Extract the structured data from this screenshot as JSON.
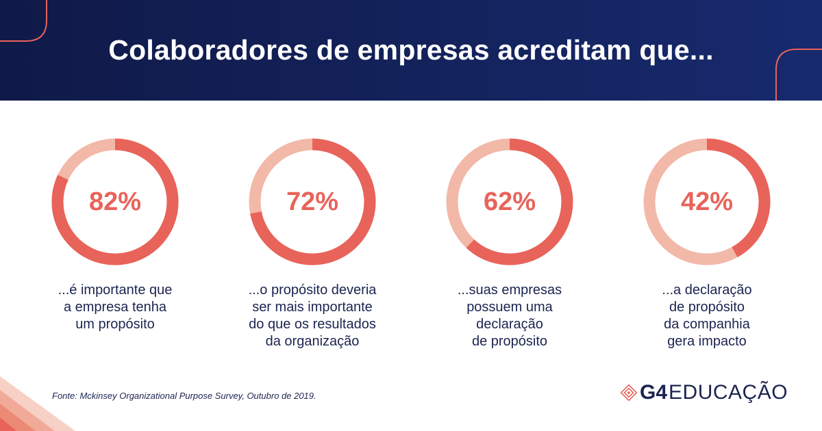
{
  "header": {
    "title": "Colaboradores de empresas acreditam que..."
  },
  "chart_data": {
    "type": "pie",
    "style": "donut",
    "items": [
      {
        "value": 82,
        "label": "82%",
        "caption": [
          "...é importante que",
          "a empresa tenha",
          "um propósito"
        ]
      },
      {
        "value": 72,
        "label": "72%",
        "caption": [
          "...o propósito deveria",
          "ser mais importante",
          "do que os resultados",
          "da organização"
        ]
      },
      {
        "value": 62,
        "label": "62%",
        "caption": [
          "...suas empresas",
          "possuem uma",
          "declaração",
          "de propósito"
        ]
      },
      {
        "value": 42,
        "label": "42%",
        "caption": [
          "...a declaração",
          "de propósito",
          "da companhia",
          "gera impacto"
        ]
      }
    ],
    "colors": {
      "filled": "#e8635a",
      "remaining": "#f2b8a8",
      "text": "#e8635a"
    }
  },
  "footer": {
    "source": "Fonte: Mckinsey Organizational Purpose Survey, Outubro de 2019.",
    "logo": {
      "mark": "G4",
      "word": "EDUCAÇÃO"
    }
  },
  "colors": {
    "header_bg": "#14235e",
    "accent": "#e8635a",
    "text_dark": "#1b2450"
  }
}
